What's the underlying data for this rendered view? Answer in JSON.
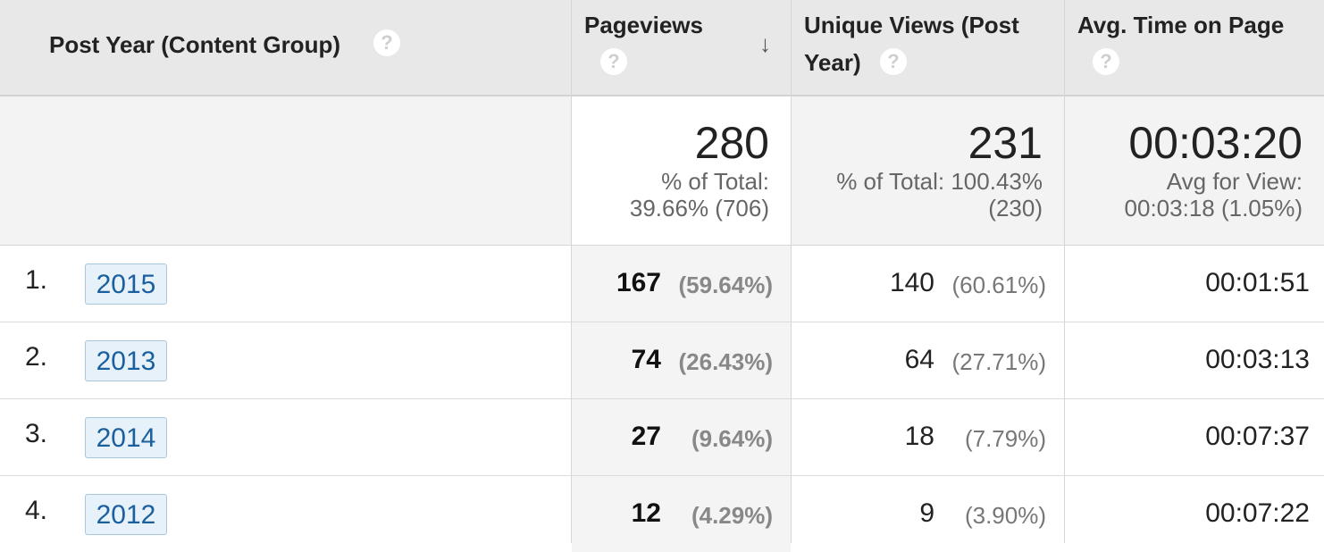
{
  "header": {
    "dimension": "Post Year (Content Group)",
    "pageviews": "Pageviews",
    "unique_line1": "Unique Views (Post",
    "unique_line2": "Year)",
    "avg_time": "Avg. Time on Page",
    "help_glyph": "?",
    "sort_glyph": "↓",
    "sort_icon": "arrow-down-icon"
  },
  "totals": {
    "pageviews": "280",
    "pageviews_sub1": "% of Total:",
    "pageviews_sub2": "39.66% (706)",
    "unique": "231",
    "unique_sub1": "% of Total: 100.43%",
    "unique_sub2": "(230)",
    "avg_time": "00:03:20",
    "avg_sub1": "Avg for View:",
    "avg_sub2": "00:03:18 (1.05%)"
  },
  "rows": [
    {
      "num": "1.",
      "year": "2015",
      "pageviews": "167",
      "pageviews_pct": "(59.64%)",
      "unique": "140",
      "unique_pct": "(60.61%)",
      "avg_time": "00:01:51"
    },
    {
      "num": "2.",
      "year": "2013",
      "pageviews": "74",
      "pageviews_pct": "(26.43%)",
      "unique": "64",
      "unique_pct": "(27.71%)",
      "avg_time": "00:03:13"
    },
    {
      "num": "3.",
      "year": "2014",
      "pageviews": "27",
      "pageviews_pct": "(9.64%)",
      "unique": "18",
      "unique_pct": "(7.79%)",
      "avg_time": "00:07:37"
    },
    {
      "num": "4.",
      "year": "2012",
      "pageviews": "12",
      "pageviews_pct": "(4.29%)",
      "unique": "9",
      "unique_pct": "(3.90%)",
      "avg_time": "00:07:22"
    }
  ],
  "colors": {
    "link": "#1a5f9e",
    "link_bg": "#e6f1f9",
    "header_bg": "#e8e8e8"
  }
}
